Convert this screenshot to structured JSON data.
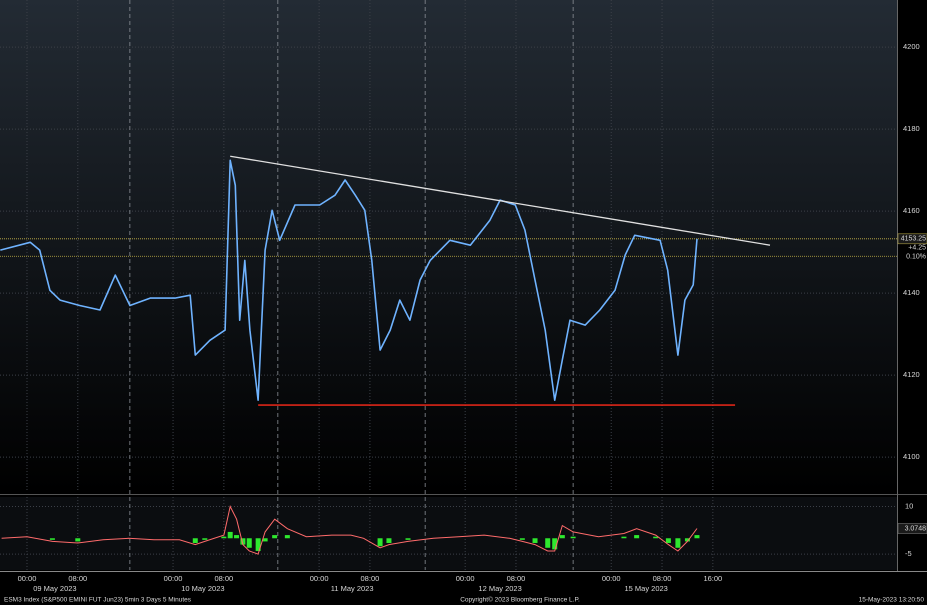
{
  "chart_data": [
    {
      "type": "line",
      "color": "#6fb3ff",
      "x": [
        -4.2,
        0.5,
        2,
        3.6,
        5.2,
        8.3,
        11.5,
        13.9,
        16.2,
        19.4,
        23.3,
        25.7,
        26.5,
        28.8,
        31.2,
        32,
        32.8,
        33.5,
        34.3,
        35.1,
        36.4,
        37.5,
        38.6,
        39.8,
        42.2,
        46.1,
        48.5,
        50.1,
        51.7,
        53.2,
        54.3,
        55.6,
        57.2,
        58.7,
        60.3,
        61.9,
        63.5,
        66.6,
        69.8,
        72.9,
        74.5,
        76.9,
        78.4,
        80,
        81.6,
        83.1,
        84.3,
        85.5,
        87.9,
        90.2,
        92.6,
        94.2,
        95.7,
        99.7,
        100.9,
        102.5,
        103.6,
        104.9,
        105.5
      ],
      "values": [
        4150.5,
        4152.4,
        4150.5,
        4140.7,
        4138.3,
        4137,
        4135.9,
        4144.4,
        4137,
        4138.8,
        4138.8,
        4139.5,
        4124.9,
        4128.5,
        4131,
        4172.4,
        4166.3,
        4133.4,
        4148,
        4131,
        4113.9,
        4150.5,
        4160.2,
        4152.9,
        4161.5,
        4161.5,
        4163.9,
        4167.6,
        4163.9,
        4160.2,
        4148,
        4126.1,
        4131,
        4138.3,
        4133.4,
        4143.2,
        4148,
        4152.9,
        4151.7,
        4157.8,
        4162.7,
        4161.5,
        4155.4,
        4143.2,
        4131,
        4113.9,
        4123.7,
        4133.4,
        4132.2,
        4135.9,
        4140.7,
        4149.3,
        4154.1,
        4152.9,
        4145.6,
        4124.9,
        4138.3,
        4142,
        4153.25
      ],
      "xlim": [
        -4.25,
        137
      ],
      "xticks": [
        {
          "value": 0,
          "label": "00:00"
        },
        {
          "value": 8,
          "label": "08:00"
        },
        {
          "value": 23,
          "label": "00:00"
        },
        {
          "value": 31,
          "label": "08:00"
        },
        {
          "value": 46,
          "label": "00:00"
        },
        {
          "value": 54,
          "label": "08:00"
        },
        {
          "value": 69,
          "label": "00:00"
        },
        {
          "value": 77,
          "label": "08:00"
        },
        {
          "value": 92,
          "label": "00:00"
        },
        {
          "value": 100,
          "label": "08:00"
        },
        {
          "value": 108,
          "label": "16:00"
        }
      ],
      "date_ticks": [
        {
          "value": 4.4,
          "label": "09 May 2023"
        },
        {
          "value": 27.7,
          "label": "10 May 2023"
        },
        {
          "value": 51.2,
          "label": "11 May 2023"
        },
        {
          "value": 74.5,
          "label": "12 May 2023"
        },
        {
          "value": 97.5,
          "label": "15 May 2023"
        }
      ],
      "session_breaks": [
        16.2,
        39.5,
        62.7,
        86
      ],
      "ylim": [
        4091.5,
        4211.5
      ],
      "yticks": [
        4100,
        4120,
        4140,
        4160,
        4180,
        4200
      ],
      "grid": true,
      "last_price": 4153.25,
      "prev_close": 4149,
      "change": {
        "value": 4.25,
        "label": "+4.25"
      },
      "change_pct": {
        "value": 0.1,
        "label": "0.10%"
      },
      "lines": [
        {
          "color": "#e0e0e0",
          "x": [
            32,
            117
          ],
          "y": [
            4173.4,
            4151.7
          ]
        },
        {
          "color": "#ff2a1a",
          "x": [
            36.4,
            111.5
          ],
          "y": [
            4112.7,
            4112.7
          ]
        }
      ]
    },
    {
      "type": "line",
      "x": [
        -4,
        0,
        4,
        8,
        12,
        16,
        20,
        24,
        26.5,
        28,
        31,
        32,
        33,
        34,
        35,
        36.4,
        37.5,
        39,
        41,
        44,
        48,
        51,
        53,
        55.6,
        57,
        60,
        64,
        68,
        72,
        76,
        78,
        80,
        82,
        83.1,
        84.3,
        86,
        90,
        94,
        96,
        99,
        101,
        102.5,
        104,
        105.5
      ],
      "series": [
        {
          "type": "line",
          "color": "#ff6b6b",
          "values": [
            0,
            0.5,
            -1,
            -1.5,
            -0.5,
            0,
            -0.5,
            -0.5,
            -2,
            -1,
            1,
            10,
            6,
            -2,
            -4,
            -5,
            2,
            6,
            3,
            0.5,
            1,
            1,
            0,
            -3,
            -2,
            -1,
            0,
            0.5,
            1,
            0,
            -1,
            -2,
            -4,
            -4,
            4,
            2,
            0.5,
            1.5,
            3,
            1,
            -2,
            -4,
            -1,
            3.0748
          ]
        },
        {
          "type": "bar",
          "color": "#2ee82e",
          "values": [
            0,
            0,
            -0.5,
            -1,
            0,
            0,
            0,
            0,
            -1.5,
            -0.5,
            0.5,
            2,
            1,
            -2,
            -3,
            -4,
            -1,
            1,
            1,
            0,
            0,
            0,
            0,
            -2.5,
            -1.5,
            -0.5,
            0,
            0,
            0,
            0,
            -0.5,
            -1.5,
            -3,
            -3.5,
            1,
            0.5,
            0,
            0.5,
            1,
            0.5,
            -1.5,
            -3,
            -1,
            1
          ]
        }
      ],
      "ylim": [
        -10,
        13
      ],
      "yticks": [
        -5,
        10
      ],
      "grid": true
    }
  ],
  "footer": {
    "ticker": "ESM3 Index (S&P500 EMINI FUT  Jun23) 5min 3 Days 5 Minutes",
    "copyright": "Copyright© 2023 Bloomberg Finance L.P.",
    "timestamp": "15-May-2023 13:20:50"
  }
}
